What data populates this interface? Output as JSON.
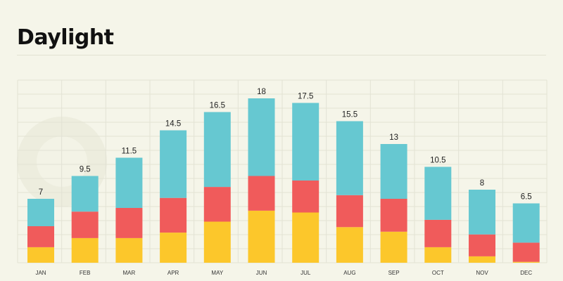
{
  "header": {
    "title": "Daylight"
  },
  "colors": {
    "background": "#f5f5e9",
    "grid": "#e2e2d4",
    "segment_bottom": "#fcc72b",
    "segment_middle": "#f05b5b",
    "segment_top": "#66c8d1"
  },
  "chart_data": {
    "type": "bar",
    "stacked": true,
    "title": "Daylight",
    "xlabel": "",
    "ylabel": "",
    "grid": true,
    "legend": "none",
    "ylim": [
      0,
      20
    ],
    "categories": [
      "JAN",
      "FEB",
      "MAR",
      "APR",
      "MAY",
      "JUN",
      "JUL",
      "AUG",
      "SEP",
      "OCT",
      "NOV",
      "DEC"
    ],
    "totals": [
      7,
      9.5,
      11.5,
      14.5,
      16.5,
      18,
      17.5,
      15.5,
      13,
      10.5,
      8,
      6.5
    ],
    "series": [
      {
        "values": [
          1.7,
          2.7,
          2.7,
          3.3,
          4.5,
          5.7,
          5.5,
          3.9,
          3.4,
          1.7,
          0.7,
          0.1
        ]
      },
      {
        "values": [
          2.3,
          2.9,
          3.3,
          3.8,
          3.8,
          3.8,
          3.5,
          3.5,
          3.6,
          3.0,
          2.4,
          2.1
        ]
      },
      {
        "values": [
          3.0,
          3.9,
          5.5,
          7.4,
          8.2,
          8.5,
          8.5,
          8.1,
          6.0,
          5.8,
          4.9,
          4.3
        ]
      }
    ]
  }
}
